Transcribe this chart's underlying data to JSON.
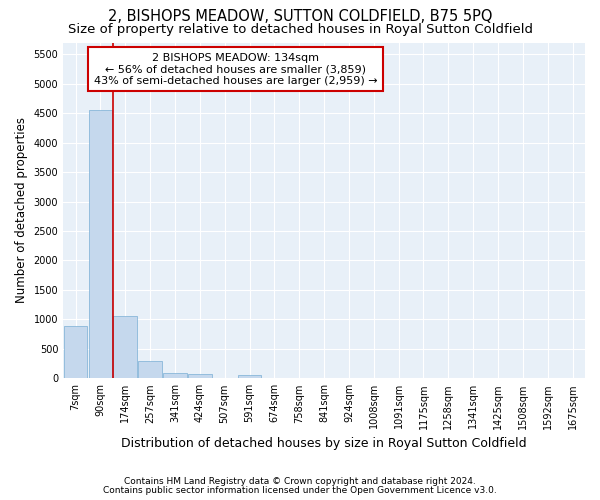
{
  "title": "2, BISHOPS MEADOW, SUTTON COLDFIELD, B75 5PQ",
  "subtitle": "Size of property relative to detached houses in Royal Sutton Coldfield",
  "xlabel": "Distribution of detached houses by size in Royal Sutton Coldfield",
  "ylabel": "Number of detached properties",
  "footnote1": "Contains HM Land Registry data © Crown copyright and database right 2024.",
  "footnote2": "Contains public sector information licensed under the Open Government Licence v3.0.",
  "bin_labels": [
    "7sqm",
    "90sqm",
    "174sqm",
    "257sqm",
    "341sqm",
    "424sqm",
    "507sqm",
    "591sqm",
    "674sqm",
    "758sqm",
    "841sqm",
    "924sqm",
    "1008sqm",
    "1091sqm",
    "1175sqm",
    "1258sqm",
    "1341sqm",
    "1425sqm",
    "1508sqm",
    "1592sqm",
    "1675sqm"
  ],
  "bar_values": [
    880,
    4560,
    1060,
    290,
    90,
    80,
    0,
    60,
    0,
    0,
    0,
    0,
    0,
    0,
    0,
    0,
    0,
    0,
    0,
    0,
    0
  ],
  "bar_color": "#c5d8ed",
  "bar_edge_color": "#7aaed4",
  "vline_color": "#cc0000",
  "annotation_text": "2 BISHOPS MEADOW: 134sqm\n← 56% of detached houses are smaller (3,859)\n43% of semi-detached houses are larger (2,959) →",
  "ylim": [
    0,
    5700
  ],
  "yticks": [
    0,
    500,
    1000,
    1500,
    2000,
    2500,
    3000,
    3500,
    4000,
    4500,
    5000,
    5500
  ],
  "background_color": "#e8f0f8",
  "grid_color": "#ffffff",
  "title_fontsize": 10.5,
  "subtitle_fontsize": 9.5,
  "xlabel_fontsize": 9,
  "ylabel_fontsize": 8.5,
  "tick_fontsize": 7,
  "annotation_fontsize": 8,
  "footnote_fontsize": 6.5
}
